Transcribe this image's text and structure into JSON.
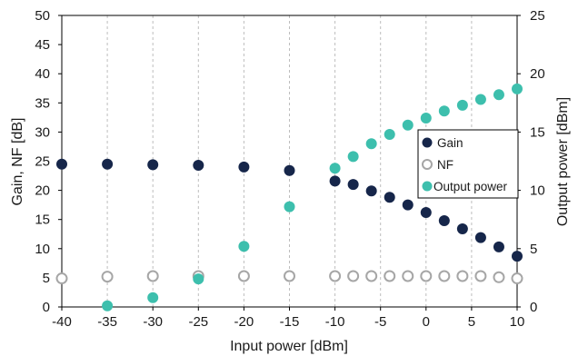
{
  "chart_data": {
    "type": "scatter",
    "title": "",
    "xlabel": "Input power [dBm]",
    "ylabel_left": "Gain, NF [dB]",
    "ylabel_right": "Output power [dBm]",
    "xlim": [
      -40,
      10
    ],
    "ylim_left": [
      0,
      50
    ],
    "ylim_right": [
      0,
      25
    ],
    "x_ticks": [
      -40,
      -35,
      -30,
      -25,
      -20,
      -15,
      -10,
      -5,
      0,
      5,
      10
    ],
    "y_ticks_left": [
      0,
      5,
      10,
      15,
      20,
      25,
      30,
      35,
      40,
      45,
      50
    ],
    "y_ticks_right": [
      0,
      5,
      10,
      15,
      20,
      25
    ],
    "grid": "vertical dashed",
    "legend_position": "middle-right",
    "series": [
      {
        "name": "Gain",
        "axis": "left",
        "marker": "filled circle",
        "color": "#16264a",
        "x": [
          -40,
          -35,
          -30,
          -25,
          -20,
          -15,
          -10,
          -8,
          -6,
          -4,
          -2,
          0,
          2,
          4,
          6,
          8,
          10
        ],
        "y": [
          24.5,
          24.5,
          24.4,
          24.3,
          24.0,
          23.4,
          21.6,
          21.0,
          19.9,
          18.8,
          17.5,
          16.2,
          14.8,
          13.4,
          11.9,
          10.3,
          8.7
        ]
      },
      {
        "name": "NF",
        "axis": "left",
        "marker": "open circle",
        "color": "#a6a6a6",
        "x": [
          -40,
          -35,
          -30,
          -25,
          -20,
          -15,
          -10,
          -8,
          -6,
          -4,
          -2,
          0,
          2,
          4,
          6,
          8,
          10
        ],
        "y": [
          4.9,
          5.2,
          5.3,
          5.3,
          5.3,
          5.3,
          5.3,
          5.3,
          5.3,
          5.3,
          5.3,
          5.3,
          5.3,
          5.3,
          5.3,
          5.1,
          4.9
        ]
      },
      {
        "name": "Output power",
        "axis": "right",
        "marker": "filled circle",
        "color": "#3dbfad",
        "x": [
          -35,
          -30,
          -25,
          -20,
          -15,
          -10,
          -8,
          -6,
          -4,
          -2,
          0,
          2,
          4,
          6,
          8,
          10
        ],
        "y": [
          0.1,
          0.8,
          2.4,
          5.2,
          8.6,
          11.9,
          12.9,
          14.0,
          14.8,
          15.6,
          16.2,
          16.8,
          17.3,
          17.8,
          18.2,
          18.7
        ]
      }
    ]
  }
}
